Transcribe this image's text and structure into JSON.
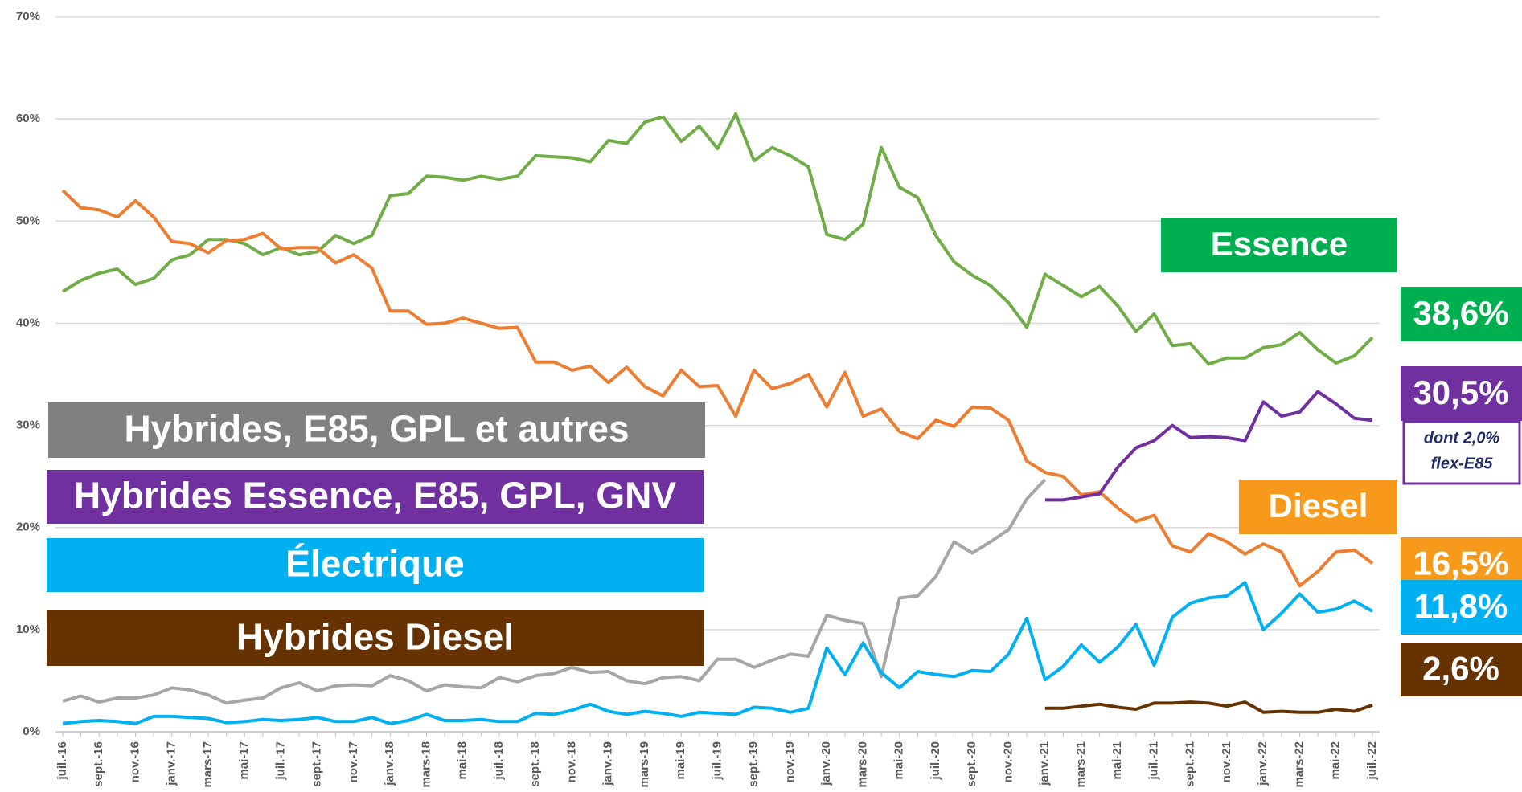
{
  "chart_data": {
    "type": "line",
    "categories": [
      "juil.-16",
      null,
      "sept.-16",
      null,
      "nov.-16",
      null,
      "janv.-17",
      null,
      "mars-17",
      null,
      "mai-17",
      null,
      "juil.-17",
      null,
      "sept.-17",
      null,
      "nov.-17",
      null,
      "janv.-18",
      null,
      "mars-18",
      null,
      "mai-18",
      null,
      "juil.-18",
      null,
      "sept.-18",
      null,
      "nov.-18",
      null,
      "janv.-19",
      null,
      "mars-19",
      null,
      "mai-19",
      null,
      "juil.-19",
      null,
      "sept.-19",
      null,
      "nov.-19",
      null,
      "janv.-20",
      null,
      "mars-20",
      null,
      "mai-20",
      null,
      "juil.-20",
      null,
      "sept.-20",
      null,
      "nov.-20",
      null,
      "janv.-21",
      null,
      "mars-21",
      null,
      "mai-21",
      null,
      "juil.-21",
      null,
      "sept.-21",
      null,
      "nov.-21",
      null,
      "janv.-22",
      null,
      "mars-22",
      null,
      "mai-22",
      null,
      "juil.-22"
    ],
    "ylim": [
      0,
      70
    ],
    "yticks": [
      {
        "value": 0,
        "label": "0%"
      },
      {
        "value": 10,
        "label": "10%"
      },
      {
        "value": 20,
        "label": "20%"
      },
      {
        "value": 30,
        "label": "30%"
      },
      {
        "value": 40,
        "label": "40%"
      },
      {
        "value": 50,
        "label": "50%"
      },
      {
        "value": 60,
        "label": "60%"
      },
      {
        "value": 70,
        "label": "70%"
      }
    ],
    "grid": true,
    "series": [
      {
        "name": "Essence",
        "color": "#70ad47",
        "label_color": "#00b050",
        "end_label": "38,6%",
        "values": [
          43.1,
          44.2,
          44.9,
          45.3,
          43.8,
          44.4,
          46.2,
          46.7,
          48.2,
          48.2,
          47.8,
          46.7,
          47.4,
          46.7,
          47.0,
          48.6,
          47.8,
          48.6,
          52.5,
          52.7,
          54.4,
          54.3,
          54.0,
          54.4,
          54.1,
          54.4,
          56.4,
          56.3,
          56.2,
          55.8,
          57.9,
          57.6,
          59.7,
          60.2,
          57.8,
          59.3,
          57.1,
          60.5,
          55.9,
          57.2,
          56.4,
          55.3,
          48.7,
          48.2,
          49.7,
          57.2,
          53.3,
          52.3,
          48.6,
          46.0,
          44.7,
          43.7,
          42.0,
          39.6,
          44.8,
          43.7,
          42.6,
          43.6,
          41.7,
          39.2,
          40.9,
          37.8,
          38.0,
          36.0,
          36.6,
          36.6,
          37.6,
          37.9,
          39.1,
          37.4,
          36.1,
          36.8,
          38.6
        ]
      },
      {
        "name": "Diesel",
        "color": "#ed7d31",
        "label_color": "#f79a1c",
        "end_label": "16,5%",
        "values": [
          53.0,
          51.3,
          51.1,
          50.4,
          52.0,
          50.4,
          48.0,
          47.8,
          46.9,
          48.1,
          48.2,
          48.8,
          47.3,
          47.4,
          47.4,
          45.9,
          46.7,
          45.4,
          41.2,
          41.2,
          39.9,
          40.0,
          40.5,
          40.0,
          39.5,
          39.6,
          36.2,
          36.2,
          35.4,
          35.8,
          34.2,
          35.7,
          33.8,
          32.9,
          35.4,
          33.8,
          33.9,
          30.9,
          35.4,
          33.6,
          34.1,
          35.0,
          31.8,
          35.2,
          30.9,
          31.6,
          29.4,
          28.7,
          30.5,
          29.9,
          31.8,
          31.7,
          30.5,
          26.5,
          25.4,
          25.0,
          23.2,
          23.5,
          21.9,
          20.6,
          21.2,
          18.2,
          17.6,
          19.4,
          18.6,
          17.4,
          18.4,
          17.6,
          14.3,
          15.7,
          17.6,
          17.8,
          16.5
        ]
      },
      {
        "name": "Hybrides, E85, GPL et autres",
        "color": "#a6a6a6",
        "label_color": "#808080",
        "values": [
          3.0,
          3.5,
          2.9,
          3.3,
          3.3,
          3.6,
          4.3,
          4.1,
          3.6,
          2.8,
          3.1,
          3.3,
          4.3,
          4.8,
          4.0,
          4.5,
          4.6,
          4.5,
          5.5,
          5.0,
          4.0,
          4.6,
          4.4,
          4.3,
          5.3,
          4.9,
          5.5,
          5.7,
          6.3,
          5.8,
          5.9,
          5.0,
          4.7,
          5.3,
          5.4,
          5.0,
          7.1,
          7.1,
          6.3,
          7.0,
          7.6,
          7.4,
          11.4,
          10.9,
          10.6,
          5.4,
          13.1,
          13.3,
          15.2,
          18.6,
          17.5,
          18.6,
          19.8,
          22.8,
          24.7,
          null,
          null,
          null,
          null,
          null,
          null,
          null,
          null,
          null,
          null,
          null,
          null,
          null,
          null,
          null,
          null,
          null,
          null
        ]
      },
      {
        "name": "Hybrides Essence, E85, GPL, GNV",
        "color": "#7030a0",
        "label_color": "#7030a0",
        "end_label": "30,5%",
        "values": [
          null,
          null,
          null,
          null,
          null,
          null,
          null,
          null,
          null,
          null,
          null,
          null,
          null,
          null,
          null,
          null,
          null,
          null,
          null,
          null,
          null,
          null,
          null,
          null,
          null,
          null,
          null,
          null,
          null,
          null,
          null,
          null,
          null,
          null,
          null,
          null,
          null,
          null,
          null,
          null,
          null,
          null,
          null,
          null,
          null,
          null,
          null,
          null,
          null,
          null,
          null,
          null,
          null,
          null,
          22.7,
          22.7,
          23.0,
          23.3,
          25.9,
          27.8,
          28.5,
          30.0,
          28.8,
          28.9,
          28.8,
          28.5,
          32.3,
          30.9,
          31.3,
          33.3,
          32.1,
          30.7,
          30.5
        ]
      },
      {
        "name": "Électrique",
        "color": "#00b0f0",
        "label_color": "#00b0f0",
        "end_label": "11,8%",
        "values": [
          0.8,
          1.0,
          1.1,
          1.0,
          0.8,
          1.5,
          1.5,
          1.4,
          1.3,
          0.9,
          1.0,
          1.2,
          1.1,
          1.2,
          1.4,
          1.0,
          1.0,
          1.4,
          0.8,
          1.1,
          1.7,
          1.1,
          1.1,
          1.2,
          1.0,
          1.0,
          1.8,
          1.7,
          2.1,
          2.7,
          2.0,
          1.7,
          2.0,
          1.8,
          1.5,
          1.9,
          1.8,
          1.7,
          2.4,
          2.3,
          1.9,
          2.3,
          8.2,
          5.6,
          8.7,
          5.8,
          4.3,
          5.9,
          5.6,
          5.4,
          6.0,
          5.9,
          7.6,
          11.1,
          5.1,
          6.4,
          8.5,
          6.8,
          8.3,
          10.5,
          6.5,
          11.2,
          12.6,
          13.1,
          13.3,
          14.6,
          10.0,
          11.6,
          13.5,
          11.7,
          12.0,
          12.8,
          11.8
        ]
      },
      {
        "name": "Hybrides Diesel",
        "color": "#663300",
        "label_color": "#663300",
        "end_label": "2,6%",
        "values": [
          null,
          null,
          null,
          null,
          null,
          null,
          null,
          null,
          null,
          null,
          null,
          null,
          null,
          null,
          null,
          null,
          null,
          null,
          null,
          null,
          null,
          null,
          null,
          null,
          null,
          null,
          null,
          null,
          null,
          null,
          null,
          null,
          null,
          null,
          null,
          null,
          null,
          null,
          null,
          null,
          null,
          null,
          null,
          null,
          null,
          null,
          null,
          null,
          null,
          null,
          null,
          null,
          null,
          null,
          2.3,
          2.3,
          2.5,
          2.7,
          2.4,
          2.2,
          2.8,
          2.8,
          2.9,
          2.8,
          2.5,
          2.9,
          1.9,
          2.0,
          1.9,
          1.9,
          2.2,
          2.0,
          2.6
        ]
      }
    ],
    "annotations": [
      "dont 2,0%",
      "flex-E85"
    ]
  }
}
